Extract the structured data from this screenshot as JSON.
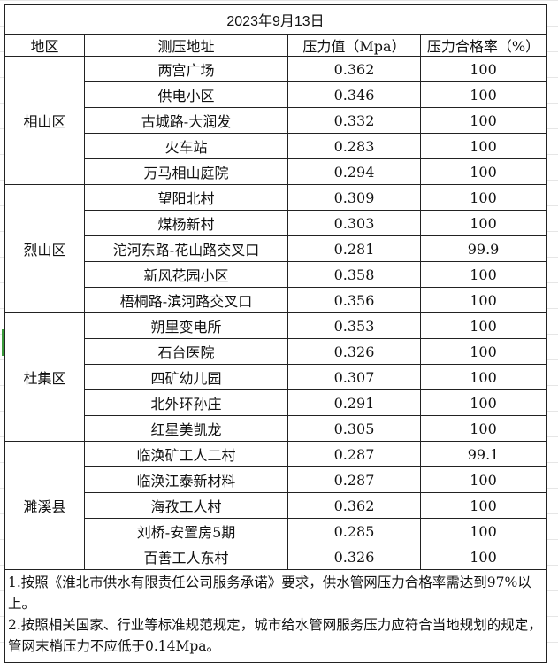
{
  "title": "2023年9月13日",
  "headers": [
    "地区",
    "测压地址",
    "压力值（Mpa）",
    "压力合格率（%）"
  ],
  "groups": [
    {
      "district": "相山区",
      "rows": [
        [
          "两宫广场",
          "0.362",
          "100"
        ],
        [
          "供电小区",
          "0.346",
          "100"
        ],
        [
          "古城路-大润发",
          "0.332",
          "100"
        ],
        [
          "火车站",
          "0.283",
          "100"
        ],
        [
          "万马相山庭院",
          "0.294",
          "100"
        ]
      ]
    },
    {
      "district": "烈山区",
      "rows": [
        [
          "望阳北村",
          "0.309",
          "100"
        ],
        [
          "煤杨新村",
          "0.303",
          "100"
        ],
        [
          "沱河东路-花山路交叉口",
          "0.281",
          "99.9"
        ],
        [
          "新风花园小区",
          "0.358",
          "100"
        ],
        [
          "梧桐路-滨河路交叉口",
          "0.356",
          "100"
        ]
      ]
    },
    {
      "district": "杜集区",
      "rows": [
        [
          "朔里变电所",
          "0.353",
          "100"
        ],
        [
          "石台医院",
          "0.326",
          "100"
        ],
        [
          "四矿幼儿园",
          "0.307",
          "100"
        ],
        [
          "北外环孙庄",
          "0.291",
          "100"
        ],
        [
          "红星美凯龙",
          "0.305",
          "100"
        ]
      ]
    },
    {
      "district": "濉溪县",
      "rows": [
        [
          "临涣矿工人二村",
          "0.287",
          "99.1"
        ],
        [
          "临涣江泰新材料",
          "0.287",
          "100"
        ],
        [
          "海孜工人村",
          "0.362",
          "100"
        ],
        [
          "刘桥-安置房5期",
          "0.285",
          "100"
        ],
        [
          "百善工人东村",
          "0.326",
          "100"
        ]
      ]
    }
  ],
  "notes": [
    "1.按照《淮北市供水有限责任公司服务承诺》要求，供水管网压力合格率需达到97%以上。",
    "2.按照相关国家、行业等标准规范规定，城市给水管网服务压力应符合当地规划的规定，管网末梢压力不应低于0.14Mpa。"
  ]
}
